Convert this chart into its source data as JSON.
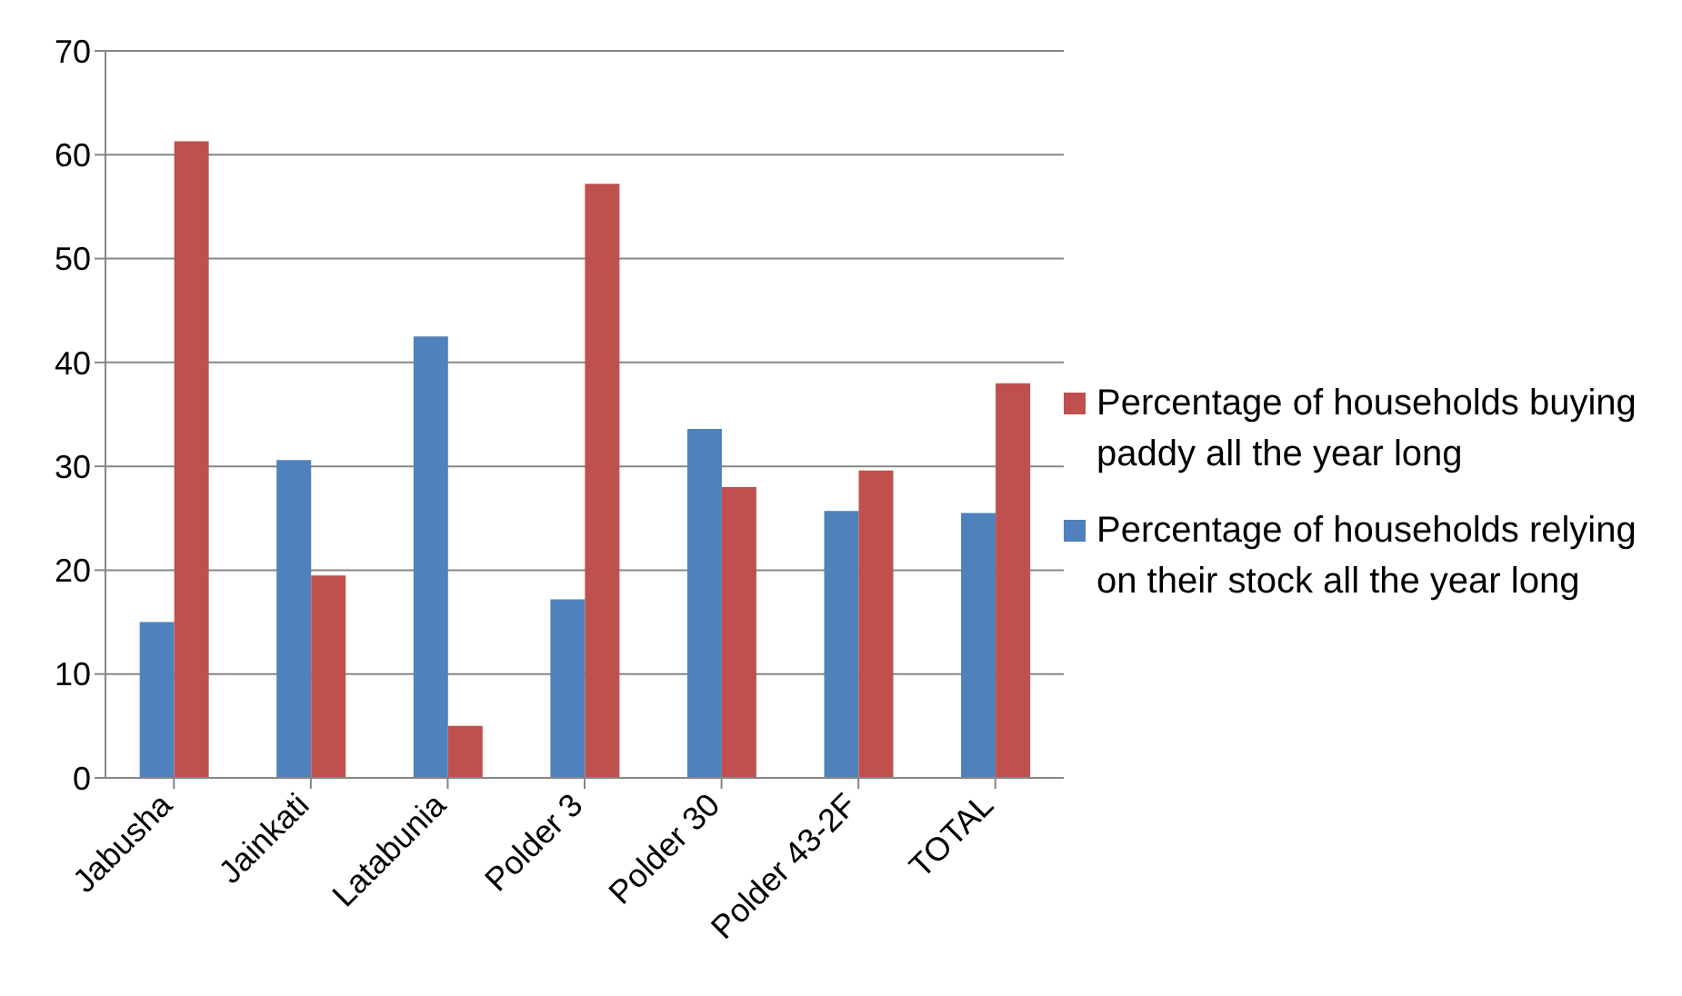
{
  "chart_data": {
    "type": "bar",
    "categories": [
      "Jabusha",
      "Jainkati",
      "Latabunia",
      "Polder 3",
      "Polder 30",
      "Polder 43-2F",
      "TOTAL"
    ],
    "series": [
      {
        "name": "Percentage of households relying on their stock all the year long",
        "color": "#4f81bd",
        "values": [
          15,
          30.6,
          42.5,
          17.2,
          33.6,
          25.7,
          25.5
        ]
      },
      {
        "name": "Percentage of households buying paddy all the year long",
        "color": "#c0504d",
        "values": [
          61.3,
          19.5,
          5,
          57.2,
          28,
          29.6,
          38
        ]
      }
    ],
    "ylim": [
      0,
      70
    ],
    "yticks": [
      0,
      10,
      20,
      30,
      40,
      50,
      60,
      70
    ],
    "grid": "y",
    "legend": "right"
  }
}
